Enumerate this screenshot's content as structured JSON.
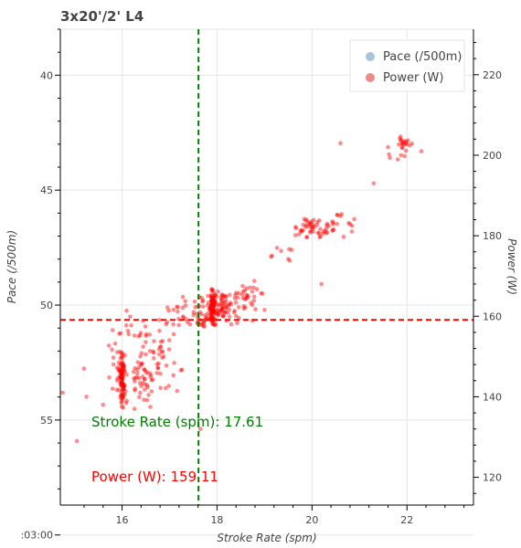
{
  "chart_data": {
    "type": "scatter",
    "title": "3x20'/2' L4",
    "xlabel": "Stroke Rate (spm)",
    "ylabel_left": "Pace (/500m)",
    "ylabel_right": "Power (W)",
    "xlim": [
      14.7,
      23.4
    ],
    "xticks": [
      16,
      18,
      20,
      22
    ],
    "ylim_left": [
      58.7,
      38.0
    ],
    "yticks_left": [
      {
        "value": 40,
        "label": "40"
      },
      {
        "value": 45,
        "label": "45"
      },
      {
        "value": 50,
        "label": "50"
      },
      {
        "value": 55,
        "label": "55"
      },
      {
        "value": 60,
        "label": ":03:00"
      }
    ],
    "ylim_right": [
      113.1,
      231.3
    ],
    "yticks_right": [
      120,
      140,
      160,
      180,
      200,
      220
    ],
    "grid": true,
    "legend": {
      "position": "top-right",
      "entries": [
        {
          "name": "Pace (/500m)",
          "color": "#a6c5dc"
        },
        {
          "name": "Power (W)",
          "color": "#f08a8a"
        }
      ]
    },
    "vline": {
      "x": 17.61,
      "color": "#008000",
      "style": "dashed"
    },
    "hline": {
      "y": 159.11,
      "axis": "right",
      "color": "#ff0000",
      "style": "dashed"
    },
    "annotations": [
      {
        "text": "Stroke Rate (spm):  17.61",
        "color": "#008000"
      },
      {
        "text": "Power (W): 159.11",
        "color": "#ff0000"
      }
    ],
    "series": [
      {
        "name": "Power (W)",
        "color": "#ff0000",
        "axis": "right",
        "clusters": [
          {
            "x": 16.0,
            "y": 144,
            "n": 80,
            "sx": 0.04,
            "sy": 4.5
          },
          {
            "x": 15.95,
            "y": 149,
            "n": 25,
            "sx": 0.15,
            "sy": 6
          },
          {
            "x": 16.4,
            "y": 145,
            "n": 45,
            "sx": 0.18,
            "sy": 5
          },
          {
            "x": 16.9,
            "y": 147,
            "n": 35,
            "sx": 0.25,
            "sy": 5
          },
          {
            "x": 16.5,
            "y": 156,
            "n": 20,
            "sx": 0.4,
            "sy": 3
          },
          {
            "x": 17.2,
            "y": 161,
            "n": 20,
            "sx": 0.25,
            "sy": 3
          },
          {
            "x": 17.9,
            "y": 162,
            "n": 90,
            "sx": 0.04,
            "sy": 3
          },
          {
            "x": 18.1,
            "y": 162,
            "n": 60,
            "sx": 0.15,
            "sy": 3
          },
          {
            "x": 17.7,
            "y": 161,
            "n": 40,
            "sx": 0.2,
            "sy": 3
          },
          {
            "x": 18.6,
            "y": 164,
            "n": 40,
            "sx": 0.25,
            "sy": 3.5
          },
          {
            "x": 20.0,
            "y": 182,
            "n": 45,
            "sx": 0.2,
            "sy": 2
          },
          {
            "x": 20.6,
            "y": 183,
            "n": 20,
            "sx": 0.25,
            "sy": 2.5
          },
          {
            "x": 21.95,
            "y": 203,
            "n": 18,
            "sx": 0.1,
            "sy": 1.3
          },
          {
            "x": 21.9,
            "y": 200,
            "n": 6,
            "sx": 0.2,
            "sy": 1.5
          },
          {
            "x": 19.4,
            "y": 176,
            "n": 8,
            "sx": 0.3,
            "sy": 2
          }
        ],
        "points": [
          [
            14.75,
            141
          ],
          [
            15.05,
            129
          ],
          [
            15.2,
            147
          ],
          [
            15.25,
            140
          ],
          [
            15.6,
            138
          ],
          [
            15.8,
            142
          ],
          [
            16.1,
            139
          ],
          [
            17.65,
            132
          ],
          [
            18.3,
            158
          ],
          [
            20.2,
            168
          ],
          [
            20.6,
            203
          ],
          [
            21.3,
            193
          ],
          [
            21.6,
            202
          ],
          [
            22.3,
            201
          ]
        ]
      }
    ]
  }
}
